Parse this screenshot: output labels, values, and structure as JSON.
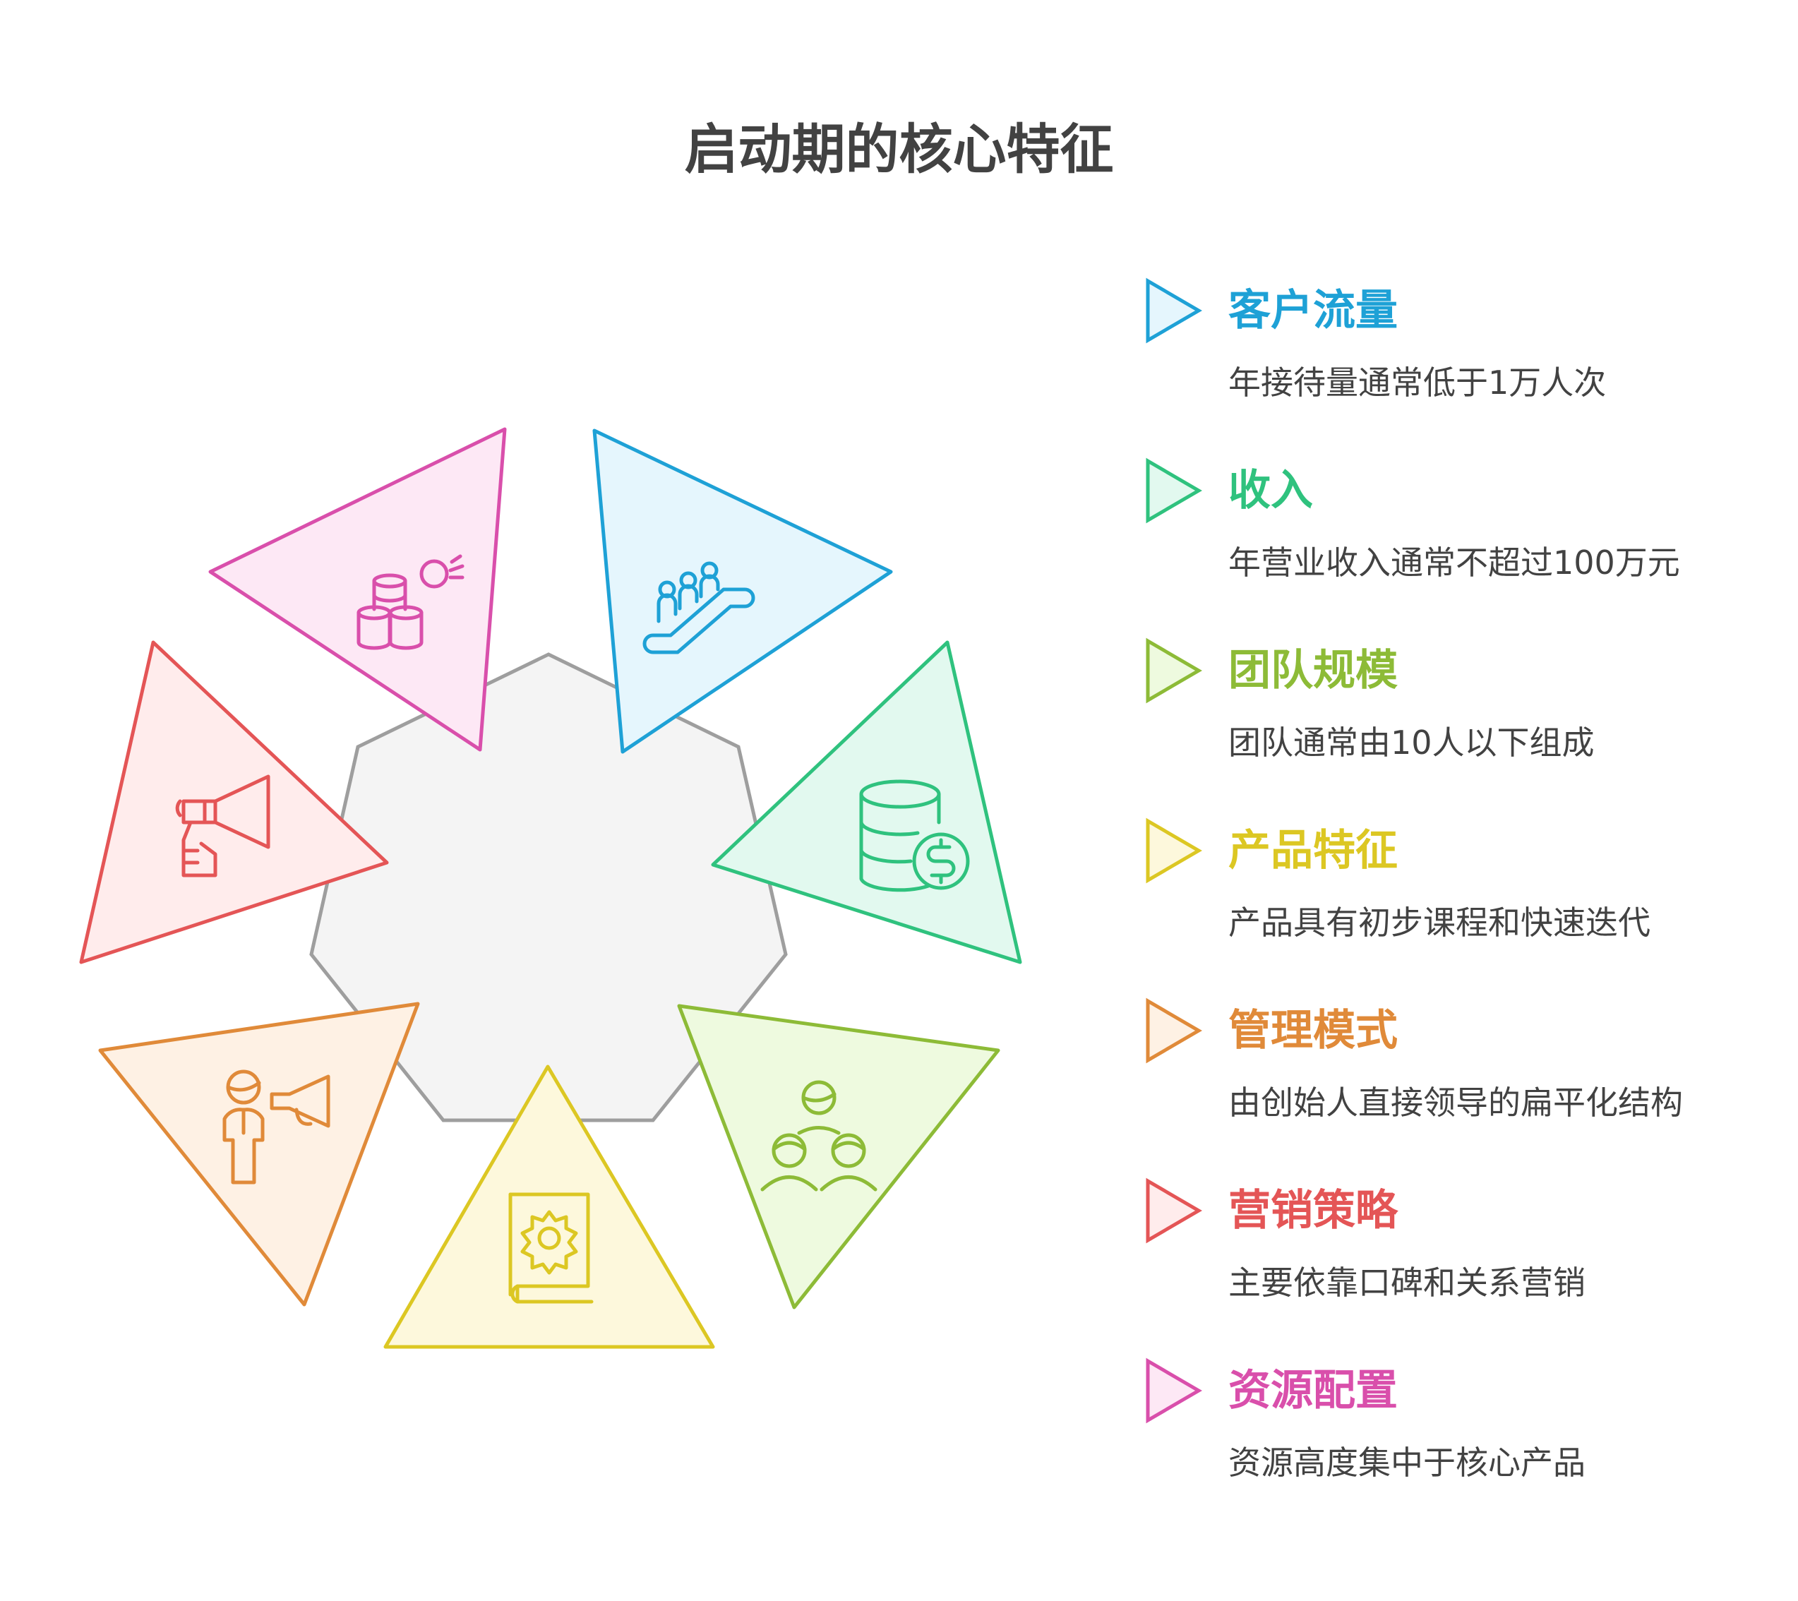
{
  "title": "启动期的核心特征",
  "center": {
    "fill": "#f4f4f4",
    "stroke": "#9e9e9e"
  },
  "items": [
    {
      "title": "客户流量",
      "desc": "年接待量通常低于1万人次",
      "color": "#1ea1d6",
      "fill": "#e5f6fd",
      "icon": "escalator-people-icon"
    },
    {
      "title": "收入",
      "desc": "年营业收入通常不超过100万元",
      "color": "#2fc27e",
      "fill": "#e2f9ef",
      "icon": "coin-stack-dollar-icon"
    },
    {
      "title": "团队规模",
      "desc": "团队通常由10人以下组成",
      "color": "#8dbb37",
      "fill": "#eefadf",
      "icon": "team-icon"
    },
    {
      "title": "产品特征",
      "desc": "产品具有初步课程和快速迭代",
      "color": "#dcc723",
      "fill": "#fdf8dc",
      "icon": "book-gear-icon"
    },
    {
      "title": "管理模式",
      "desc": "由创始人直接领导的扁平化结构",
      "color": "#e08a39",
      "fill": "#fef1e4",
      "icon": "leader-megaphone-icon"
    },
    {
      "title": "营销策略",
      "desc": "主要依靠口碑和关系营销",
      "color": "#e45556",
      "fill": "#ffecec",
      "icon": "megaphone-hand-icon"
    },
    {
      "title": "资源配置",
      "desc": "资源高度集中于核心产品",
      "color": "#d94fab",
      "fill": "#fde8f5",
      "icon": "resource-stack-icon"
    }
  ]
}
